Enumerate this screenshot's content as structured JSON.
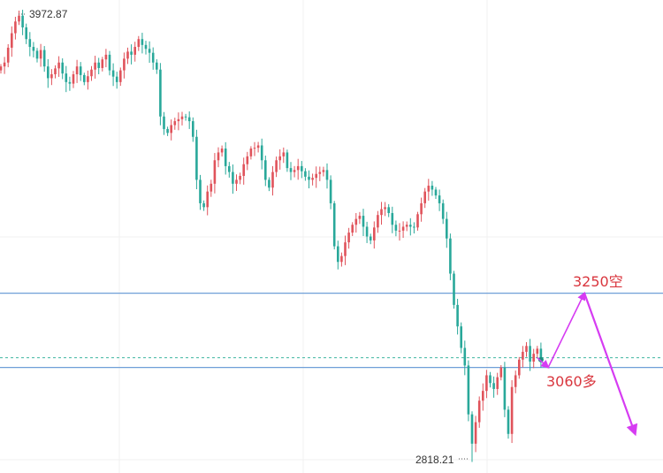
{
  "chart_data": {
    "type": "candlestick",
    "ylim": [
      2790,
      4000
    ],
    "extremes": {
      "high": 3972.87,
      "low": 2818.21
    },
    "high_label": "3972.87",
    "low_label": "2818.21",
    "horizontal_lines": [
      {
        "price": 3250,
        "style": "solid",
        "color": "#6f9fd8"
      },
      {
        "price": 3060,
        "style": "solid",
        "color": "#6f9fd8"
      },
      {
        "price": 3085,
        "style": "dashed",
        "color": "#3fb6a0"
      }
    ],
    "annotations": [
      {
        "price": 3250,
        "label": "3250空"
      },
      {
        "price": 3060,
        "label": "3060多"
      }
    ],
    "projection": {
      "color": "#d63cf2",
      "start_index": 148,
      "points": [
        [
          0,
          3085
        ],
        [
          3,
          3060
        ],
        [
          13,
          3250
        ],
        [
          27,
          2890
        ]
      ]
    },
    "colors": {
      "up": "#e0535b",
      "down": "#29a89a"
    },
    "closes": [
      3830,
      3840,
      3878,
      3915,
      3945,
      3960,
      3930,
      3900,
      3880,
      3870,
      3850,
      3872,
      3830,
      3800,
      3810,
      3825,
      3840,
      3812,
      3790,
      3786,
      3810,
      3830,
      3808,
      3790,
      3805,
      3822,
      3840,
      3826,
      3848,
      3860,
      3820,
      3804,
      3790,
      3820,
      3850,
      3868,
      3860,
      3880,
      3900,
      3885,
      3875,
      3865,
      3840,
      3822,
      3702,
      3670,
      3660,
      3680,
      3690,
      3695,
      3702,
      3700,
      3690,
      3650,
      3540,
      3480,
      3470,
      3510,
      3530,
      3590,
      3610,
      3620,
      3575,
      3560,
      3530,
      3540,
      3550,
      3580,
      3600,
      3620,
      3622,
      3628,
      3590,
      3540,
      3520,
      3560,
      3590,
      3600,
      3610,
      3570,
      3560,
      3565,
      3575,
      3562,
      3548,
      3540,
      3545,
      3555,
      3560,
      3565,
      3540,
      3480,
      3370,
      3330,
      3345,
      3380,
      3405,
      3425,
      3440,
      3448,
      3420,
      3395,
      3385,
      3418,
      3450,
      3465,
      3470,
      3455,
      3425,
      3410,
      3410,
      3420,
      3425,
      3420,
      3418,
      3452,
      3480,
      3510,
      3525,
      3515,
      3500,
      3480,
      3440,
      3390,
      3300,
      3220,
      3165,
      3110,
      3065,
      2940,
      2865,
      2920,
      2975,
      3000,
      3040,
      3020,
      3005,
      3035,
      3060,
      2952,
      2890,
      3010,
      3040,
      3080,
      3100,
      3115,
      3075,
      3095,
      3108,
      3080
    ]
  }
}
